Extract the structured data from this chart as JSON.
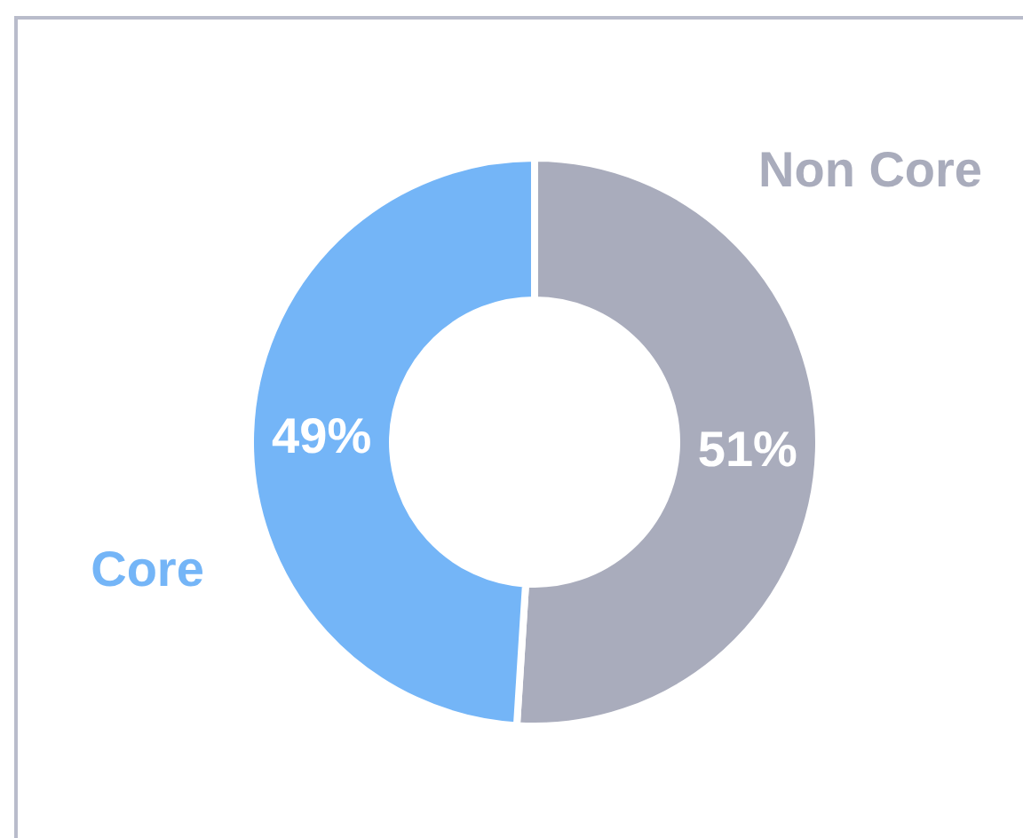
{
  "chart_data": {
    "type": "donut",
    "categories": [
      "Non Core",
      "Core"
    ],
    "values": [
      51,
      49
    ],
    "colors": [
      "#a9acbc",
      "#74b5f7"
    ],
    "value_labels": [
      "51%",
      "49%"
    ]
  }
}
